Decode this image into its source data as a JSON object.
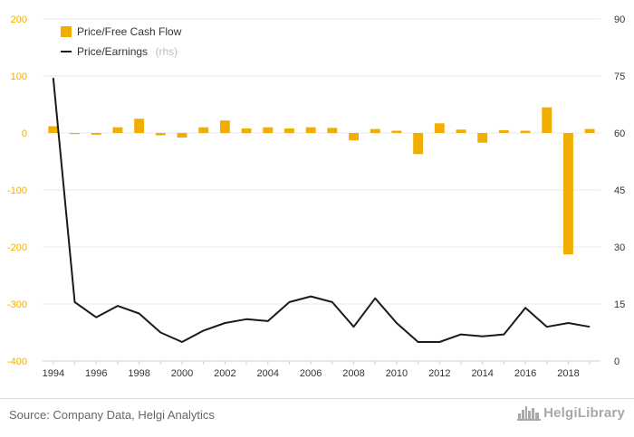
{
  "chart_data": {
    "type": "bar+line",
    "x": [
      "1994",
      "1995",
      "1996",
      "1997",
      "1998",
      "1999",
      "2000",
      "2001",
      "2002",
      "2003",
      "2004",
      "2005",
      "2006",
      "2007",
      "2008",
      "2009",
      "2010",
      "2011",
      "2012",
      "2013",
      "2014",
      "2015",
      "2016",
      "2017",
      "2018",
      "2019"
    ],
    "x_tick_labels": [
      "1994",
      "1996",
      "1998",
      "2000",
      "2002",
      "2004",
      "2006",
      "2008",
      "2010",
      "2012",
      "2014",
      "2016",
      "2018"
    ],
    "series": [
      {
        "name": "Price/Free Cash Flow",
        "type": "bar",
        "axis": "left",
        "color": "#f2ae00",
        "values": [
          12,
          -1,
          -3,
          10,
          25,
          -4,
          -8,
          10,
          22,
          8,
          10,
          8,
          10,
          9,
          -13,
          7,
          4,
          -37,
          17,
          6,
          -17,
          5,
          4,
          45,
          -213,
          7
        ]
      },
      {
        "name": "Price/Earnings",
        "name_suffix": "(rhs)",
        "type": "line",
        "axis": "right",
        "color": "#1a1a1a",
        "values": [
          74.5,
          15.5,
          11.5,
          14.5,
          12.5,
          7.5,
          5.0,
          8.0,
          10.0,
          11.0,
          10.5,
          15.5,
          17.0,
          15.5,
          9.0,
          16.5,
          10.0,
          5.0,
          5.0,
          7.0,
          6.5,
          7.0,
          14.0,
          9.0,
          10.0,
          9.0
        ]
      }
    ],
    "y_left": {
      "min": -400,
      "max": 200,
      "ticks": [
        200,
        100,
        0,
        -100,
        -200,
        -300,
        -400
      ],
      "tick_labels": [
        "200",
        "100",
        "0",
        "-100",
        "-200",
        "-300",
        "-400"
      ],
      "color": "#f2ae00"
    },
    "y_right": {
      "min": 0,
      "max": 90,
      "ticks": [
        90,
        75,
        60,
        45,
        30,
        15,
        0
      ],
      "tick_labels": [
        "90",
        "75",
        "60",
        "45",
        "30",
        "15",
        "0"
      ]
    },
    "grid": true,
    "legend_position": "top-left",
    "title": "",
    "xlabel": "",
    "ylabel": ""
  },
  "footer": {
    "source": "Source: Company Data, Helgi Analytics",
    "brand": "HelgiLibrary",
    "brand_icon": "city-skyline-icon"
  }
}
